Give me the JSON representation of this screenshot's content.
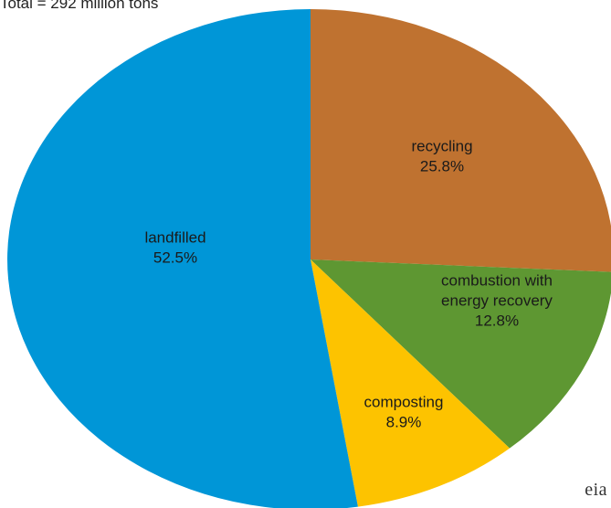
{
  "chart_data": {
    "type": "pie",
    "title": "Total = 292 million tons",
    "slices": [
      {
        "name": "recycling",
        "label_lines": [
          "recycling"
        ],
        "value": 25.8,
        "value_label": "25.8%",
        "color": "#BF7230"
      },
      {
        "name": "combustion with energy recovery",
        "label_lines": [
          "combustion with",
          "energy recovery"
        ],
        "value": 12.8,
        "value_label": "12.8%",
        "color": "#5E9732"
      },
      {
        "name": "composting",
        "label_lines": [
          "composting"
        ],
        "value": 8.9,
        "value_label": "8.9%",
        "color": "#FDC300"
      },
      {
        "name": "landfilled",
        "label_lines": [
          "landfilled"
        ],
        "value": 52.5,
        "value_label": "52.5%",
        "color": "#0096D7"
      }
    ],
    "start_angle": "12 o'clock",
    "direction": "clockwise",
    "legend": "none"
  },
  "branding": {
    "logo_text": "eia"
  }
}
